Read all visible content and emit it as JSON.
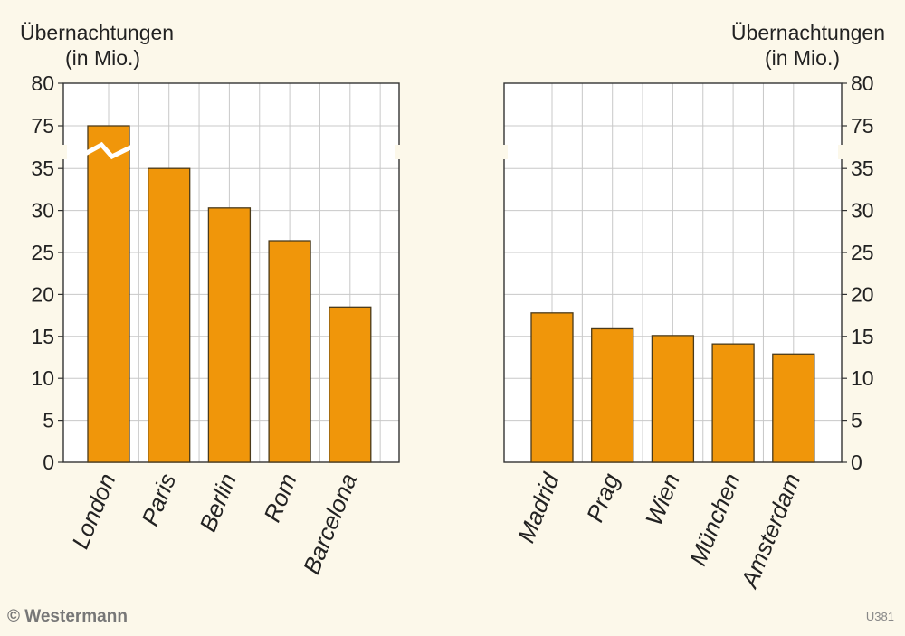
{
  "chart_data": [
    {
      "type": "bar",
      "ylabel_line1": "Übernachtungen",
      "ylabel_line2": "(in Mio.)",
      "axis_side": "left",
      "axis_break": true,
      "ylim": [
        0,
        80
      ],
      "yticks": [
        "0",
        "5",
        "10",
        "15",
        "20",
        "25",
        "30",
        "35",
        "75",
        "80"
      ],
      "categories": [
        "London",
        "Paris",
        "Berlin",
        "Rom",
        "Barcelona"
      ],
      "values": [
        75,
        35.2,
        30.3,
        26.4,
        18.5
      ],
      "grid": true
    },
    {
      "type": "bar",
      "ylabel_line1": "Übernachtungen",
      "ylabel_line2": "(in Mio.)",
      "axis_side": "right",
      "axis_break": true,
      "ylim": [
        0,
        80
      ],
      "yticks": [
        "0",
        "5",
        "10",
        "15",
        "20",
        "25",
        "30",
        "35",
        "75",
        "80"
      ],
      "categories": [
        "Madrid",
        "Prag",
        "Wien",
        "München",
        "Amsterdam"
      ],
      "values": [
        17.8,
        15.9,
        15.1,
        14.1,
        12.9
      ],
      "grid": true
    }
  ],
  "colors": {
    "bar_fill": "#f0960a",
    "bar_stroke": "#4a3a1a",
    "grid": "#c8c8c8",
    "background": "#fcf8ea"
  },
  "footer": {
    "copyright": "© Westermann",
    "code": "U381"
  }
}
